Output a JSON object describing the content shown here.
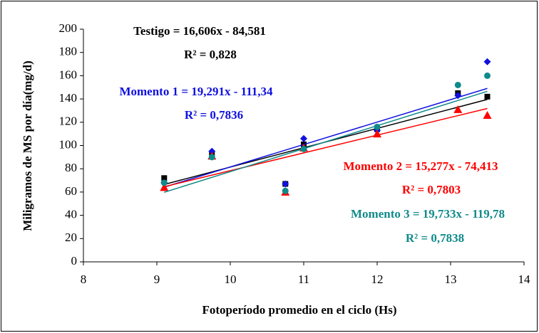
{
  "chart_data": {
    "type": "scatter",
    "x_label": "Fotoperíodo promedio en el ciclo (Hs)",
    "y_label": "Miligramos de MS  por día(mg/d)",
    "x": [
      9.1,
      9.75,
      10.75,
      11,
      12,
      13.1,
      13.5
    ],
    "xlim": [
      8,
      14
    ],
    "xticks": [
      8,
      9,
      10,
      11,
      12,
      13,
      14
    ],
    "ylim": [
      0,
      200
    ],
    "yticks": [
      0,
      20,
      40,
      60,
      80,
      100,
      120,
      140,
      160,
      180,
      200
    ],
    "grid": false,
    "series": [
      {
        "equation": "Testigo = 16,606x - 84,581",
        "r2": "R² = 0,828",
        "slope": 16.606,
        "intercept": -84.581,
        "color": "#000000",
        "marker": "square",
        "values": [
          72,
          92,
          67,
          101,
          114,
          145,
          142
        ]
      },
      {
        "equation": "Momento 1 = 19,291x - 111,34",
        "r2": "R² = 0,7836",
        "slope": 19.291,
        "intercept": -111.34,
        "color": "#1010e0",
        "marker": "diamond",
        "values": [
          68,
          95,
          67,
          106,
          113,
          143,
          172
        ]
      },
      {
        "equation": "Momento 2 = 15,277x - 74,413",
        "r2": "R² = 0,7803",
        "slope": 15.277,
        "intercept": -74.413,
        "color": "#ff0000",
        "marker": "triangle",
        "values": [
          64,
          91,
          60,
          98,
          110,
          131,
          126
        ]
      },
      {
        "equation": "Momento 3 = 19,733x - 119,78",
        "r2": "R² = 0,7838",
        "slope": 19.733,
        "intercept": -119.78,
        "color": "#108a8a",
        "marker": "circle",
        "values": [
          68,
          90,
          61,
          97,
          116,
          152,
          160
        ]
      }
    ]
  }
}
